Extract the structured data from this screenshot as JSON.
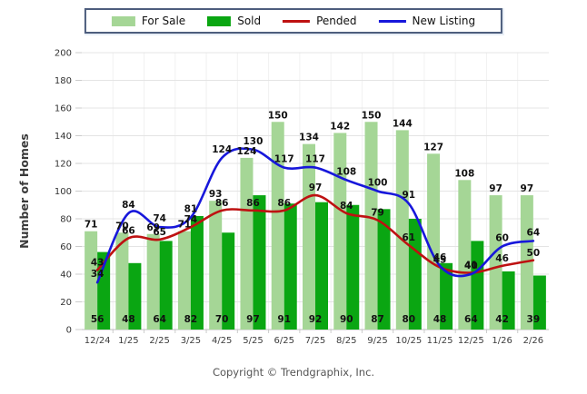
{
  "chart_data": {
    "type": "bar",
    "title": "",
    "xlabel": "",
    "ylabel": "Number of Homes",
    "ylim": [
      0,
      200
    ],
    "ytick_step": 20,
    "grid": true,
    "legend_position": "top",
    "categories": [
      "12/24",
      "1/25",
      "2/25",
      "3/25",
      "4/25",
      "5/25",
      "6/25",
      "7/25",
      "8/25",
      "9/25",
      "10/25",
      "11/25",
      "12/25",
      "1/26",
      "2/26"
    ],
    "series": [
      {
        "name": "For Sale",
        "type": "bar",
        "color": "#A5D696",
        "values": [
          71,
          70,
          69,
          71,
          93,
          124,
          150,
          134,
          142,
          150,
          144,
          127,
          108,
          97,
          97
        ]
      },
      {
        "name": "Sold",
        "type": "bar",
        "color": "#0AA612",
        "values": [
          56,
          48,
          64,
          82,
          70,
          97,
          91,
          92,
          90,
          87,
          80,
          48,
          64,
          42,
          39
        ]
      },
      {
        "name": "Pended",
        "type": "line",
        "color": "#BE1111",
        "values": [
          43,
          66,
          65,
          74,
          86,
          86,
          86,
          97,
          84,
          79,
          61,
          45,
          41,
          46,
          50
        ]
      },
      {
        "name": "New Listing",
        "type": "line",
        "color": "#1717DB",
        "values": [
          34,
          84,
          74,
          81,
          124,
          130,
          117,
          117,
          108,
          100,
          91,
          46,
          40,
          60,
          64
        ]
      }
    ]
  },
  "footer": {
    "text": "Copyright © Trendgraphix, Inc."
  }
}
